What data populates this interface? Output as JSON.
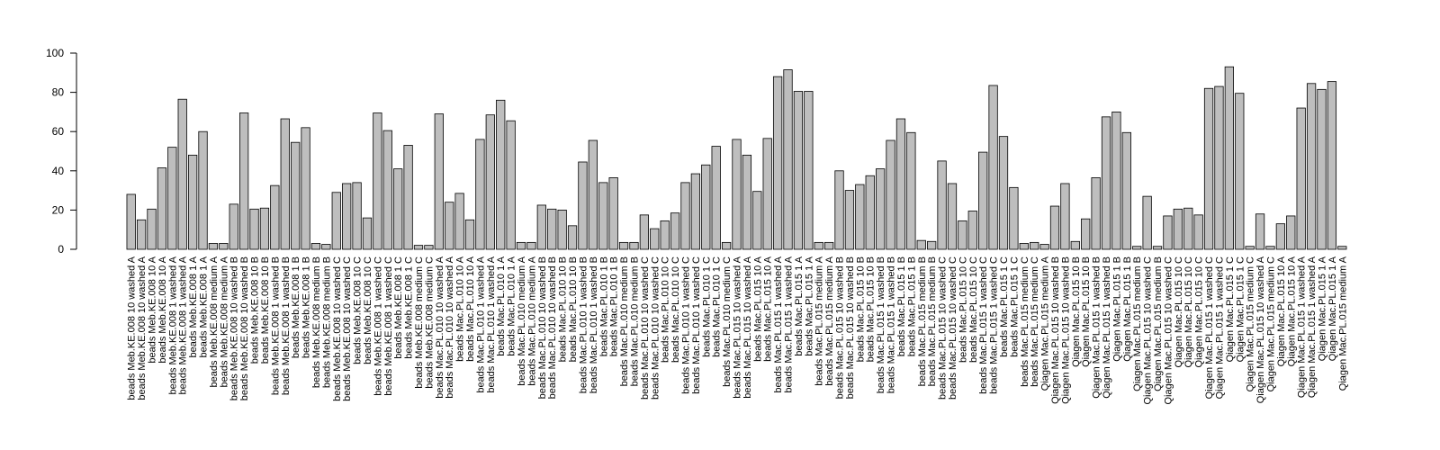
{
  "chart_data": {
    "type": "bar",
    "categories": [
      "beads Meb.KE.008 10 washed A",
      "beads Meb.KE.008 10 washed A",
      "beads Meb.KE.008 10 A",
      "beads Meb.KE.008 10 A",
      "beads Meb.KE.008 1 washed A",
      "beads Meb.KE.008 1 washed A",
      "beads Meb.KE.008 1 A",
      "beads Meb.KE.008 1 A",
      "beads Meb.KE.008 medium A",
      "beads Meb.KE.008 medium A",
      "beads Meb.KE.008 10 washed B",
      "beads Meb.KE.008 10 washed B",
      "beads Meb.KE.008 10 B",
      "beads Meb.KE.008 10 B",
      "beads Meb.KE.008 1 washed B",
      "beads Meb.KE.008 1 washed B",
      "beads Meb.KE.008 1 B",
      "beads Meb.KE.008 1 B",
      "beads Meb.KE.008 medium B",
      "beads Meb.KE.008 medium B",
      "beads Meb.KE.008 10 washed C",
      "beads Meb.KE.008 10 washed C",
      "beads Meb.KE.008 10 C",
      "beads Meb.KE.008 10 C",
      "beads Meb.KE.008 1 washed C",
      "beads Meb.KE.008 1 washed C",
      "beads Meb.KE.008 1 C",
      "beads Meb.KE.008 1 C",
      "beads Meb.KE.008 medium C",
      "beads Meb.KE.008 medium C",
      "beads Mac.PL.010 10 washed A",
      "beads Mac.PL.010 10 washed A",
      "beads Mac.PL.010 10 A",
      "beads Mac.PL.010 10 A",
      "beads Mac.PL.010 1 washed A",
      "beads Mac.PL.010 1 washed A",
      "beads Mac.PL.010 1 A",
      "beads Mac.PL.010 1 A",
      "beads Mac.PL.010 medium A",
      "beads Mac.PL.010 medium A",
      "beads Mac.PL.010 10 washed B",
      "beads Mac.PL.010 10 washed B",
      "beads Mac.PL.010 10 B",
      "beads Mac.PL.010 10 B",
      "beads Mac.PL.010 1 washed B",
      "beads Mac.PL.010 1 washed B",
      "beads Mac.PL.010 1 B",
      "beads Mac.PL.010 1 B",
      "beads Mac.PL.010 medium B",
      "beads Mac.PL.010 medium B",
      "beads Mac.PL.010 10 washed C",
      "beads Mac.PL.010 10 washed C",
      "beads Mac.PL.010 10 C",
      "beads Mac.PL.010 10 C",
      "beads Mac.PL.010 1 washed C",
      "beads Mac.PL.010 1 washed C",
      "beads Mac.PL.010 1 C",
      "beads Mac.PL.010 1 C",
      "beads Mac.PL.010 medium C",
      "beads Mac.PL.015 10 washed A",
      "beads Mac.PL.015 10 washed A",
      "beads Mac.PL.015 10 A",
      "beads Mac.PL.015 10 A",
      "beads Mac.PL.015 1 washed A",
      "beads Mac.PL.015 1 washed A",
      "beads Mac.PL.015 1 A",
      "beads Mac.PL.015 1 A",
      "beads Mac.PL.015 medium A",
      "beads Mac.PL.015 medium A",
      "beads Mac.PL.015 10 washed B",
      "beads Mac.PL.015 10 washed B",
      "beads Mac.PL.015 10 B",
      "beads Mac.PL.015 10 B",
      "beads Mac.PL.015 1 washed B",
      "beads Mac.PL.015 1 washed B",
      "beads Mac.PL.015 1 B",
      "beads Mac.PL.015 1 B",
      "beads Mac.PL.015 medium B",
      "beads Mac.PL.015 medium B",
      "beads Mac.PL.015 10 washed C",
      "beads Mac.PL.015 10 washed C",
      "beads Mac.PL.015 10 C",
      "beads Mac.PL.015 10 C",
      "beads Mac.PL.015 1 washed C",
      "beads Mac.PL.015 1 washed C",
      "beads Mac.PL.015 1 C",
      "beads Mac.PL.015 1 C",
      "beads Mac.PL.015 medium C",
      "beads Mac.PL.015 medium C",
      "Qiagen Mac.PL.015 medium A",
      "Qiagen Mac.PL.015 10 washed B",
      "Qiagen Mac.PL.015 10 washed B",
      "Qiagen Mac.PL.015 10 B",
      "Qiagen Mac.PL.015 10 B",
      "Qiagen Mac.PL.015 1 washed B",
      "Qiagen Mac.PL.015 1 washed B",
      "Qiagen Mac.PL.015 1 B",
      "Qiagen Mac.PL.015 1 B",
      "Qiagen Mac.PL.015 medium B",
      "Qiagen Mac.PL.015 10 washed C",
      "Qiagen Mac.PL.015 medium B",
      "Qiagen Mac.PL.015 10 washed C",
      "Qiagen Mac.PL.015 10 C",
      "Qiagen Mac.PL.015 10 C",
      "Qiagen Mac.PL.015 10 C",
      "Qiagen Mac.PL.015 1 washed C",
      "Qiagen Mac.PL.015 1 washed C",
      "Qiagen Mac.PL.015 1 C",
      "Qiagen Mac.PL.015 1 C",
      "Qiagen Mac.PL.015 medium C",
      "Qiagen Mac.PL.015 10 washed A",
      "Qiagen Mac.PL.015 medium C",
      "Qiagen Mac.PL.015 10 A",
      "Qiagen Mac.PL.015 10 A",
      "Qiagen Mac.PL.015 1 washed A",
      "Qiagen Mac.PL.015 1 washed A",
      "Qiagen Mac.PL.015 1 A",
      "Qiagen Mac.PL.015 1 A",
      "Qiagen Mac.PL.015 medium A"
    ],
    "values": [
      28,
      15,
      20.5,
      41.5,
      52,
      76.5,
      48,
      60,
      3,
      3,
      23,
      69.5,
      20.5,
      21,
      32.5,
      66.5,
      54.5,
      62,
      3,
      2.5,
      29,
      33.5,
      34,
      16,
      69.5,
      60.5,
      41,
      53,
      2,
      2,
      69,
      24,
      28.5,
      15,
      56,
      68.5,
      76,
      65.5,
      3.5,
      3.5,
      22.5,
      20.5,
      20,
      12,
      44.5,
      55.5,
      34,
      36.5,
      3.5,
      3.5,
      17.5,
      10.5,
      14.5,
      18.5,
      34,
      38.5,
      43,
      52.5,
      3.5,
      56,
      48,
      29.5,
      56.5,
      88,
      91.5,
      80.5,
      80.5,
      3.5,
      3.5,
      40,
      30,
      33,
      37.5,
      41,
      55.5,
      66.5,
      59.5,
      4.5,
      4,
      45,
      33.5,
      14.5,
      19.5,
      49.5,
      83.5,
      57.5,
      31.5,
      3,
      3.5,
      2.5,
      22,
      33.5,
      4,
      15.5,
      36.5,
      67.5,
      70,
      59.5,
      1.5,
      27,
      1.5,
      17,
      20.5,
      21,
      17.5,
      82,
      83,
      93,
      79.5,
      1.5,
      18,
      1.5,
      13,
      17,
      72,
      84.5,
      81.5,
      85.5,
      1.5
    ],
    "color": "#bebebe",
    "ylim": [
      0,
      100
    ],
    "yticks": [
      0,
      20,
      40,
      60,
      80,
      100
    ],
    "grid": false
  }
}
